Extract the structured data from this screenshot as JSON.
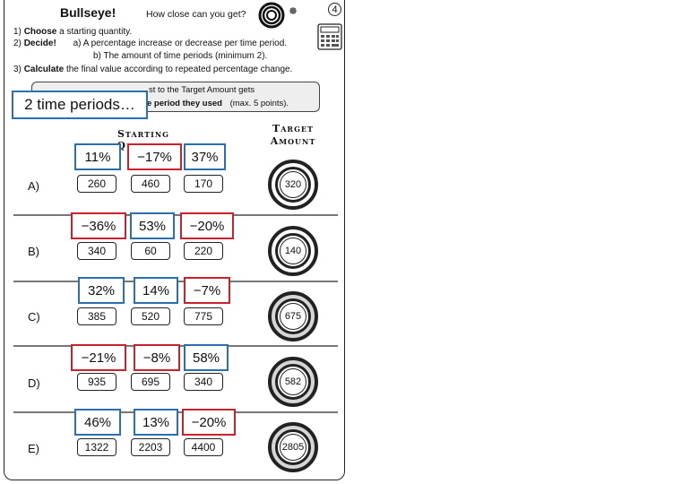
{
  "header": {
    "title": "Bullseye!",
    "subtitle": "How close can you get?",
    "page_number": "4"
  },
  "instructions": {
    "step1_num": "1)",
    "step1_bold": "Choose",
    "step1_rest": "a starting quantity.",
    "step2_num": "2)",
    "step2_bold": "Decide!",
    "step2_a": "a) A percentage increase or decrease per time period.",
    "step2_b": "b) The amount of time periods (minimum 2).",
    "step3_num": "3)",
    "step3_bold": "Calculate",
    "step3_rest": "the final value according to repeated percentage change."
  },
  "rule_box": {
    "line1": "st to the Target Amount gets",
    "line2_bold": "e period they used",
    "line2_rest": "(max. 5 points)."
  },
  "overlay_note": "2 time periods…",
  "headers": {
    "starting_quantity": "Starting Quantity",
    "target_line1": "Target",
    "target_line2": "Amount"
  },
  "rows": [
    {
      "label": "A)",
      "quantities": [
        "260",
        "460",
        "170"
      ],
      "target": "320",
      "percents": [
        {
          "text": "11%",
          "color": "blue"
        },
        {
          "text": "−17%",
          "color": "red"
        },
        {
          "text": "37%",
          "color": "blue"
        }
      ]
    },
    {
      "label": "B)",
      "quantities": [
        "340",
        "60",
        "220"
      ],
      "target": "140",
      "percents": [
        {
          "text": "−36%",
          "color": "red"
        },
        {
          "text": "53%",
          "color": "blue"
        },
        {
          "text": "−20%",
          "color": "red"
        }
      ]
    },
    {
      "label": "C)",
      "quantities": [
        "385",
        "520",
        "775"
      ],
      "target": "675",
      "percents": [
        {
          "text": "32%",
          "color": "blue"
        },
        {
          "text": "14%",
          "color": "blue"
        },
        {
          "text": "−7%",
          "color": "red"
        }
      ]
    },
    {
      "label": "D)",
      "quantities": [
        "935",
        "695",
        "340"
      ],
      "target": "582",
      "percents": [
        {
          "text": "−21%",
          "color": "red"
        },
        {
          "text": "−8%",
          "color": "red"
        },
        {
          "text": "58%",
          "color": "blue"
        }
      ]
    },
    {
      "label": "E)",
      "quantities": [
        "1322",
        "2203",
        "4400"
      ],
      "target": "2805",
      "percents": [
        {
          "text": "46%",
          "color": "blue"
        },
        {
          "text": "13%",
          "color": "blue"
        },
        {
          "text": "−20%",
          "color": "red"
        }
      ]
    }
  ],
  "colors": {
    "increase_box": "#2a6fb0",
    "decrease_box": "#c8232c"
  },
  "icons": {
    "header_icon": "bullseye-icon",
    "calculator_icon": "calculator-icon"
  }
}
